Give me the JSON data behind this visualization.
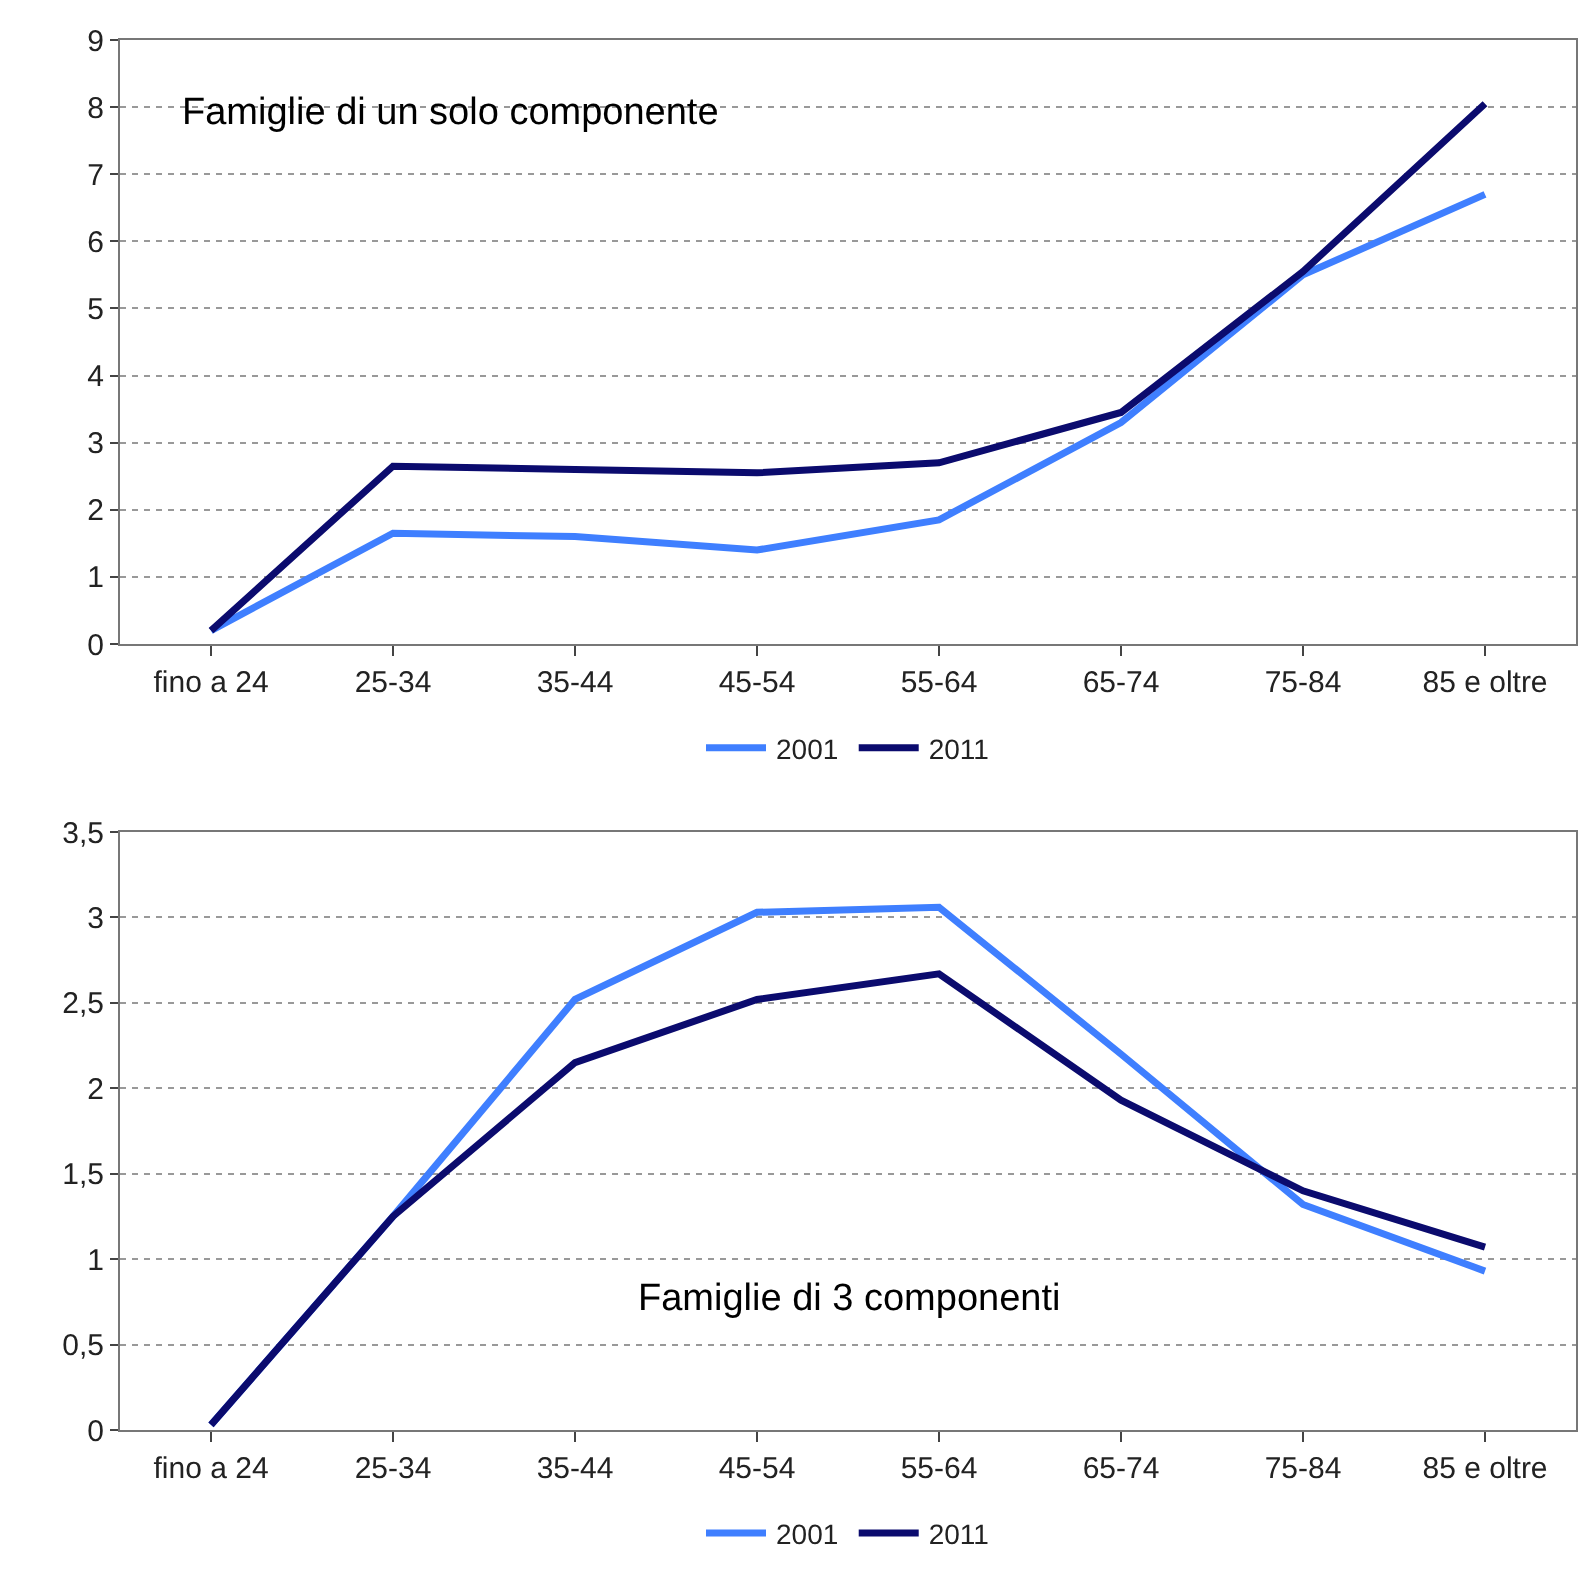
{
  "chart_data": [
    {
      "type": "line",
      "categories": [
        "fino a 24",
        "25-34",
        "35-44",
        "45-54",
        "55-64",
        "65-74",
        "75-84",
        "85 e oltre"
      ],
      "series": [
        {
          "name": "2001",
          "color": "#3f7fff",
          "values": [
            0.2,
            1.65,
            1.6,
            1.4,
            1.85,
            3.3,
            5.5,
            6.7
          ]
        },
        {
          "name": "2011",
          "color": "#0b0b6e",
          "values": [
            0.2,
            2.65,
            2.6,
            2.55,
            2.7,
            3.45,
            5.55,
            8.05
          ]
        }
      ],
      "ylim": [
        0,
        9
      ],
      "yticks": [
        0,
        1,
        2,
        3,
        4,
        5,
        6,
        7,
        8,
        9
      ],
      "grid": "y",
      "legend": "bottom",
      "marker": "none",
      "line_style": "solid",
      "annotations": [
        "Famiglie di un solo componente"
      ]
    },
    {
      "type": "line",
      "categories": [
        "fino a 24",
        "25-34",
        "35-44",
        "45-54",
        "55-64",
        "65-74",
        "75-84",
        "85 e oltre"
      ],
      "series": [
        {
          "name": "2001",
          "color": "#3f7fff",
          "values": [
            0.03,
            1.25,
            2.52,
            3.03,
            3.06,
            2.2,
            1.32,
            0.93
          ]
        },
        {
          "name": "2011",
          "color": "#0b0b6e",
          "values": [
            0.03,
            1.25,
            2.15,
            2.52,
            2.67,
            1.93,
            1.4,
            1.07
          ]
        }
      ],
      "ylim": [
        0,
        3.5
      ],
      "yticks": [
        0,
        {
          "value": 0.5,
          "label": "0,5"
        },
        1,
        {
          "value": 1.5,
          "label": "1,5"
        },
        2,
        {
          "value": 2.5,
          "label": "2,5"
        },
        3,
        {
          "value": 3.5,
          "label": "3,5"
        }
      ],
      "grid": "y",
      "legend": "bottom",
      "marker": "none",
      "line_style": "solid",
      "annotations": [
        "Famiglie di 3 componenti"
      ]
    }
  ]
}
